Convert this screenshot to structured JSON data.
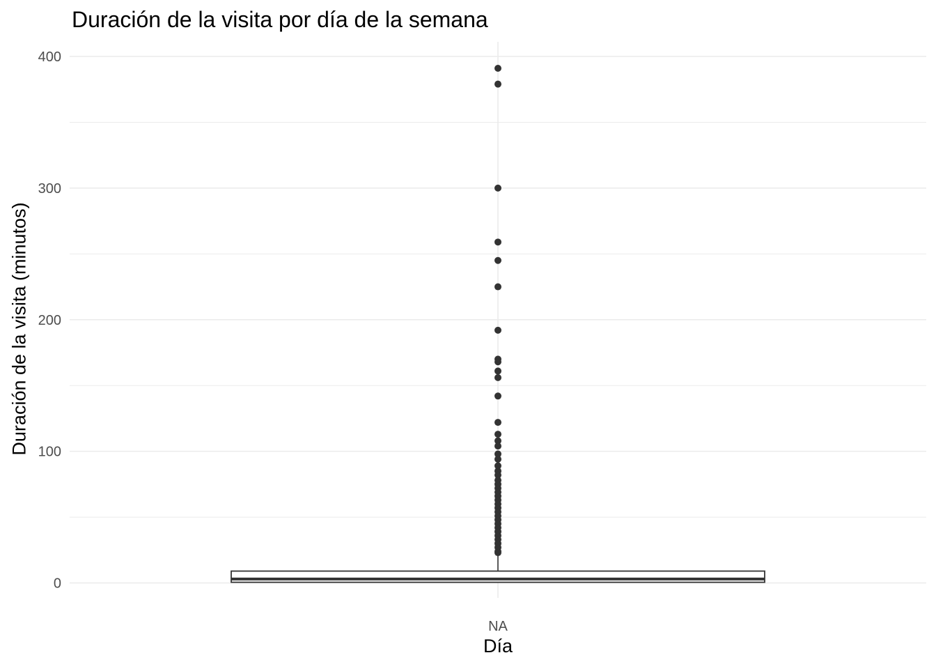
{
  "chart_data": {
    "type": "boxplot",
    "title": "Duración de la visita por día de la semana",
    "xlabel": "Día",
    "ylabel": "Duración de la visita (minutos)",
    "categories": [
      "NA"
    ],
    "ylim": [
      0,
      400
    ],
    "yticks": [
      0,
      100,
      200,
      300,
      400
    ],
    "grid": true,
    "legend": "none",
    "box": {
      "category": "NA",
      "whisker_low": 0,
      "q1": 0.5,
      "median": 3,
      "q3": 9,
      "whisker_high": 22
    },
    "outliers": [
      391,
      379,
      300,
      259,
      245,
      225,
      192,
      170,
      168,
      161,
      156,
      142,
      122,
      113,
      108,
      104,
      98,
      94,
      89,
      85,
      82,
      78,
      75,
      72,
      69,
      66,
      63,
      60,
      57,
      54,
      51,
      48,
      45,
      42,
      39,
      36,
      33,
      30,
      27,
      24,
      23
    ],
    "colors": {
      "box_outline": "#333333",
      "points": "#333333",
      "grid": "#ebebeb"
    }
  }
}
